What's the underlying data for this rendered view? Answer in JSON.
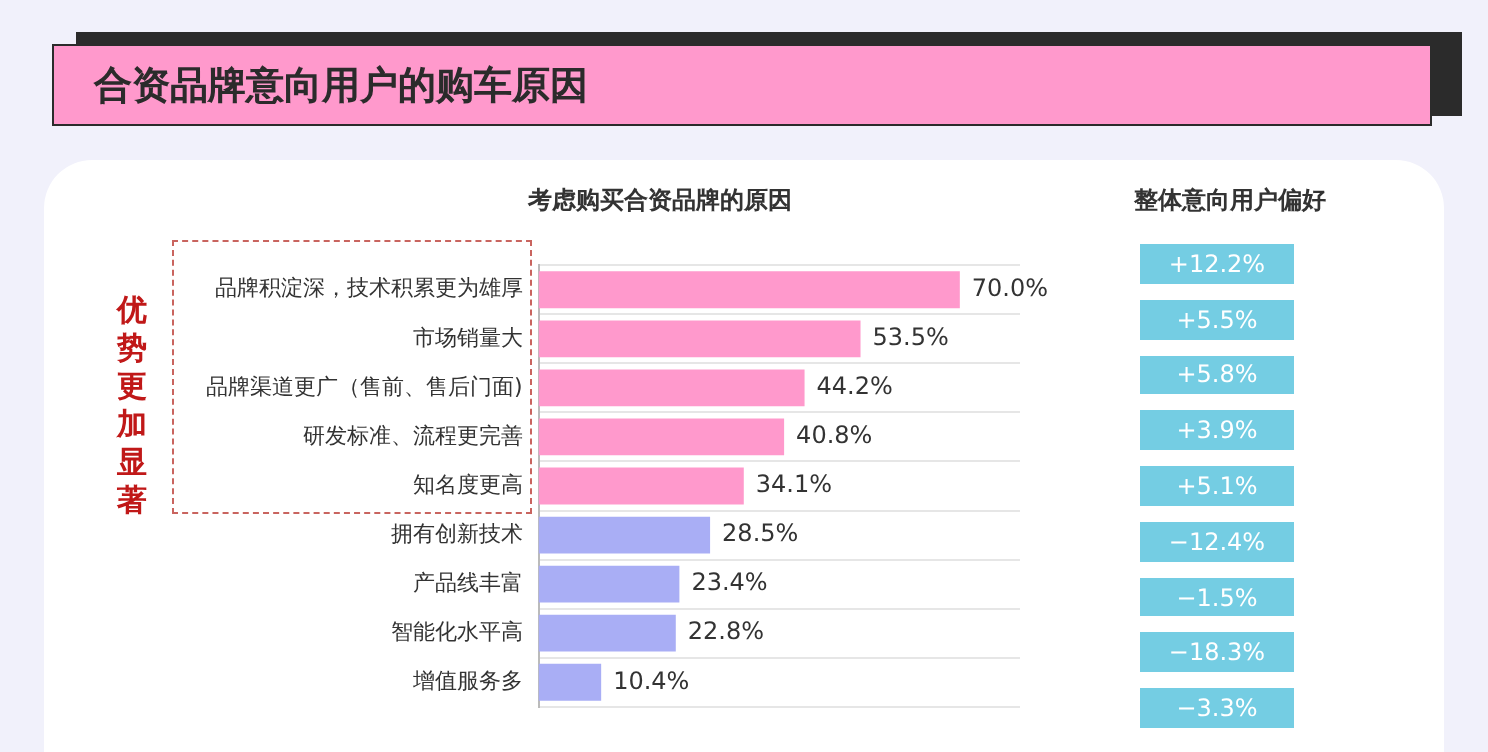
{
  "chart_data": [
    {
      "type": "bar",
      "orientation": "horizontal",
      "title": "合资品牌意向用户的购车原因",
      "subtitle": "考虑购买合资品牌的原因",
      "categories": [
        "品牌积淀深，技术积累更为雄厚",
        "市场销量大",
        "品牌渠道更广（售前、售后门面)",
        "研发标准、流程更完善",
        "知名度更高",
        "拥有创新技术",
        "产品线丰富",
        "智能化水平高",
        "增值服务多"
      ],
      "values": [
        70.0,
        53.5,
        44.2,
        40.8,
        34.1,
        28.5,
        23.4,
        22.8,
        10.4
      ],
      "value_labels": [
        "70.0%",
        "53.5%",
        "44.2%",
        "40.8%",
        "34.1%",
        "28.5%",
        "23.4%",
        "22.8%",
        "10.4%"
      ],
      "colors": [
        "#ff99cc",
        "#ff99cc",
        "#ff99cc",
        "#ff99cc",
        "#ff99cc",
        "#a9aef5",
        "#a9aef5",
        "#a9aef5",
        "#a9aef5"
      ],
      "grid": "y",
      "annotations": [
        "优势更加显著"
      ]
    },
    {
      "type": "other",
      "title": "整体意向用户偏好",
      "annotations": [
        "+12.2%",
        "+5.5%",
        "+5.8%",
        "+3.9%",
        "+5.1%",
        "−12.4%",
        "−1.5%",
        "−18.3%",
        "−3.3%"
      ]
    }
  ]
}
